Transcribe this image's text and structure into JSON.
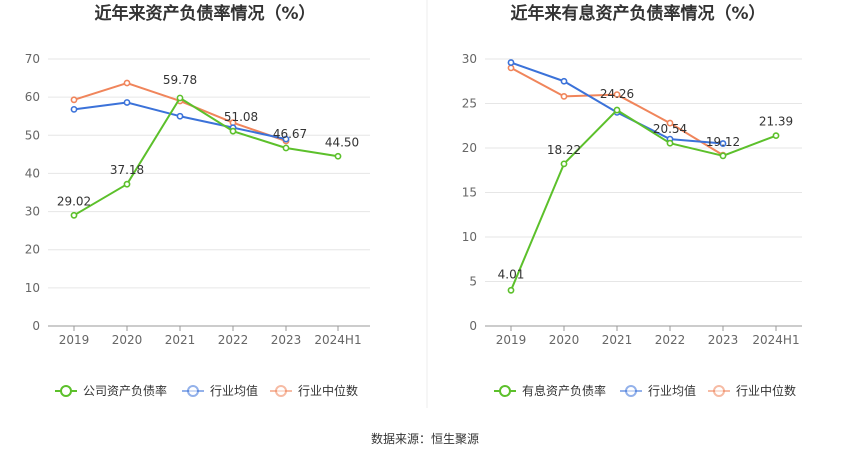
{
  "source_label": "数据来源：恒生聚源",
  "colors": {
    "company": "#5cc02b",
    "industry_avg": "#3b72d9",
    "industry_median": "#f0855b"
  },
  "chart_data": [
    {
      "type": "line",
      "title": "近年来资产负债率情况（%）",
      "categories": [
        "2019",
        "2020",
        "2021",
        "2022",
        "2023",
        "2024H1"
      ],
      "ylim": [
        0,
        70
      ],
      "yticks": [
        0,
        10,
        20,
        30,
        40,
        50,
        60,
        70
      ],
      "grid": true,
      "legend_position": "bottom",
      "series": [
        {
          "name": "公司资产负债率",
          "color": "#5cc02b",
          "values": [
            29.02,
            37.18,
            59.78,
            51.08,
            46.67,
            44.5
          ],
          "labels": [
            "29.02",
            "37.18",
            "59.78",
            "51.08",
            "46.67",
            "44.50"
          ]
        },
        {
          "name": "行业均值",
          "color": "#3b72d9",
          "values": [
            56.8,
            58.6,
            55.0,
            52.0,
            49.0,
            null
          ]
        },
        {
          "name": "行业中位数",
          "color": "#f0855b",
          "values": [
            59.3,
            63.7,
            59.0,
            53.3,
            48.5,
            null
          ]
        }
      ]
    },
    {
      "type": "line",
      "title": "近年来有息资产负债率情况（%）",
      "categories": [
        "2019",
        "2020",
        "2021",
        "2022",
        "2023",
        "2024H1"
      ],
      "ylim": [
        0,
        30
      ],
      "yticks": [
        0,
        5,
        10,
        15,
        20,
        25,
        30
      ],
      "grid": true,
      "legend_position": "bottom",
      "series": [
        {
          "name": "有息资产负债率",
          "color": "#5cc02b",
          "values": [
            4.01,
            18.22,
            24.26,
            20.54,
            19.12,
            21.39
          ],
          "labels": [
            "4.01",
            "18.22",
            "24.26",
            "20.54",
            "19.12",
            "21.39"
          ]
        },
        {
          "name": "行业均值",
          "color": "#3b72d9",
          "values": [
            29.6,
            27.5,
            24.0,
            21.0,
            20.5,
            null
          ]
        },
        {
          "name": "行业中位数",
          "color": "#f0855b",
          "values": [
            29.0,
            25.8,
            26.0,
            22.8,
            19.2,
            null
          ]
        }
      ]
    }
  ]
}
